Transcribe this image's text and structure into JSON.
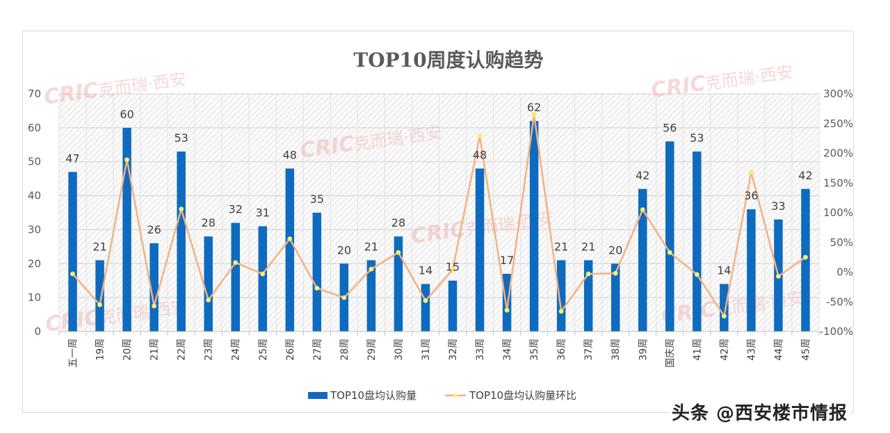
{
  "watermark": {
    "logo": "CRIC",
    "text": "克而瑞·西安"
  },
  "source_tag": "头条 @西安楼市情报",
  "chart_data": {
    "type": "bar+line",
    "title": "TOP10周度认购趋势",
    "categories": [
      "五一周",
      "19周",
      "20周",
      "21周",
      "22周",
      "23周",
      "24周",
      "25周",
      "26周",
      "27周",
      "28周",
      "29周",
      "30周",
      "31周",
      "32周",
      "33周",
      "34周",
      "35周",
      "36周",
      "37周",
      "38周",
      "39周",
      "国庆周",
      "41周",
      "42周",
      "43周",
      "44周",
      "45周"
    ],
    "series": [
      {
        "name": "TOP10盘均认购量",
        "type": "bar",
        "axis": "left",
        "color": "#0e6bbf",
        "values": [
          47,
          21,
          60,
          26,
          53,
          28,
          32,
          31,
          48,
          35,
          20,
          21,
          28,
          14,
          15,
          48,
          17,
          62,
          21,
          21,
          20,
          42,
          56,
          53,
          14,
          36,
          33,
          42
        ],
        "labels": [
          "47",
          "21",
          "60",
          "26",
          "53",
          "28",
          "32",
          "31",
          "48",
          "35",
          "20",
          "21",
          "28",
          "14",
          "15",
          "48",
          "17",
          "62",
          "21",
          "21",
          "20",
          "42",
          "",
          "53",
          "14",
          "36",
          "33",
          "42"
        ]
      },
      {
        "name": "TOP10盘均认购量环比",
        "type": "line",
        "axis": "right",
        "color": "#f4b183",
        "marker_color": "#f7f07a",
        "values": [
          -3,
          -55,
          189,
          -57,
          106,
          -47,
          16,
          -3,
          56,
          -27,
          -43,
          5,
          33,
          -48,
          4,
          229,
          -64,
          265,
          -66,
          -3,
          -2,
          105,
          33,
          -4,
          -74,
          168,
          -7,
          25
        ]
      }
    ],
    "y_left": {
      "min": 0,
      "max": 70,
      "ticks": [
        "0",
        "10",
        "20",
        "30",
        "40",
        "50",
        "60",
        "70"
      ]
    },
    "y_right": {
      "min": -100,
      "max": 300,
      "ticks": [
        "-100%",
        "-50%",
        "0%",
        "50%",
        "100%",
        "150%",
        "200%",
        "250%",
        "300%"
      ]
    },
    "grid": true,
    "legend": "bottom",
    "extra_label": {
      "index": 22,
      "text": "56"
    }
  }
}
